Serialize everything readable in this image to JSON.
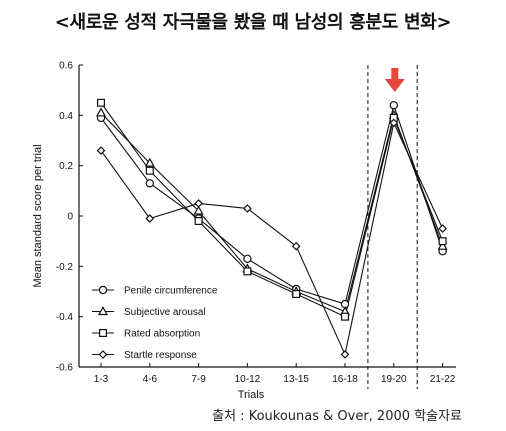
{
  "header": {
    "title": "<새로운 성적 자극물을 봤을 때 남성의 흥분도 변화>"
  },
  "source": {
    "text": "출처 : Koukounas & Over, 2000 학술자료"
  },
  "colors": {
    "line": "#111111",
    "arrow": "#e8463a",
    "background": "#ffffff"
  },
  "chart_data": {
    "type": "line",
    "xlabel": "Trials",
    "ylabel": "Mean standard score per trial",
    "ylim": [
      -0.6,
      0.6
    ],
    "yticks": [
      "0.6",
      "0.4",
      "0.2",
      "0",
      "-0.2",
      "-0.4",
      "-0.6"
    ],
    "ytick_values": [
      0.6,
      0.4,
      0.2,
      0,
      -0.2,
      -0.4,
      -0.6
    ],
    "categories": [
      "1-3",
      "4-6",
      "7-9",
      "10-12",
      "13-15",
      "16-18",
      "19-20",
      "21-22"
    ],
    "series": [
      {
        "name": "Penile circumference",
        "marker": "circle",
        "values": [
          0.39,
          0.13,
          -0.01,
          -0.17,
          -0.29,
          -0.35,
          0.44,
          -0.14
        ]
      },
      {
        "name": "Subjective arousal",
        "marker": "triangle",
        "values": [
          0.41,
          0.21,
          0.02,
          -0.21,
          -0.3,
          -0.38,
          0.4,
          -0.12
        ]
      },
      {
        "name": "Rated absorption",
        "marker": "square",
        "values": [
          0.45,
          0.18,
          -0.02,
          -0.22,
          -0.31,
          -0.4,
          0.39,
          -0.1
        ]
      },
      {
        "name": "Startle response",
        "marker": "diamond",
        "values": [
          0.26,
          -0.01,
          0.05,
          0.03,
          -0.12,
          -0.55,
          0.37,
          -0.05
        ]
      }
    ],
    "highlight_category": "19-20",
    "grid": false,
    "legend_position": "bottom-left"
  }
}
